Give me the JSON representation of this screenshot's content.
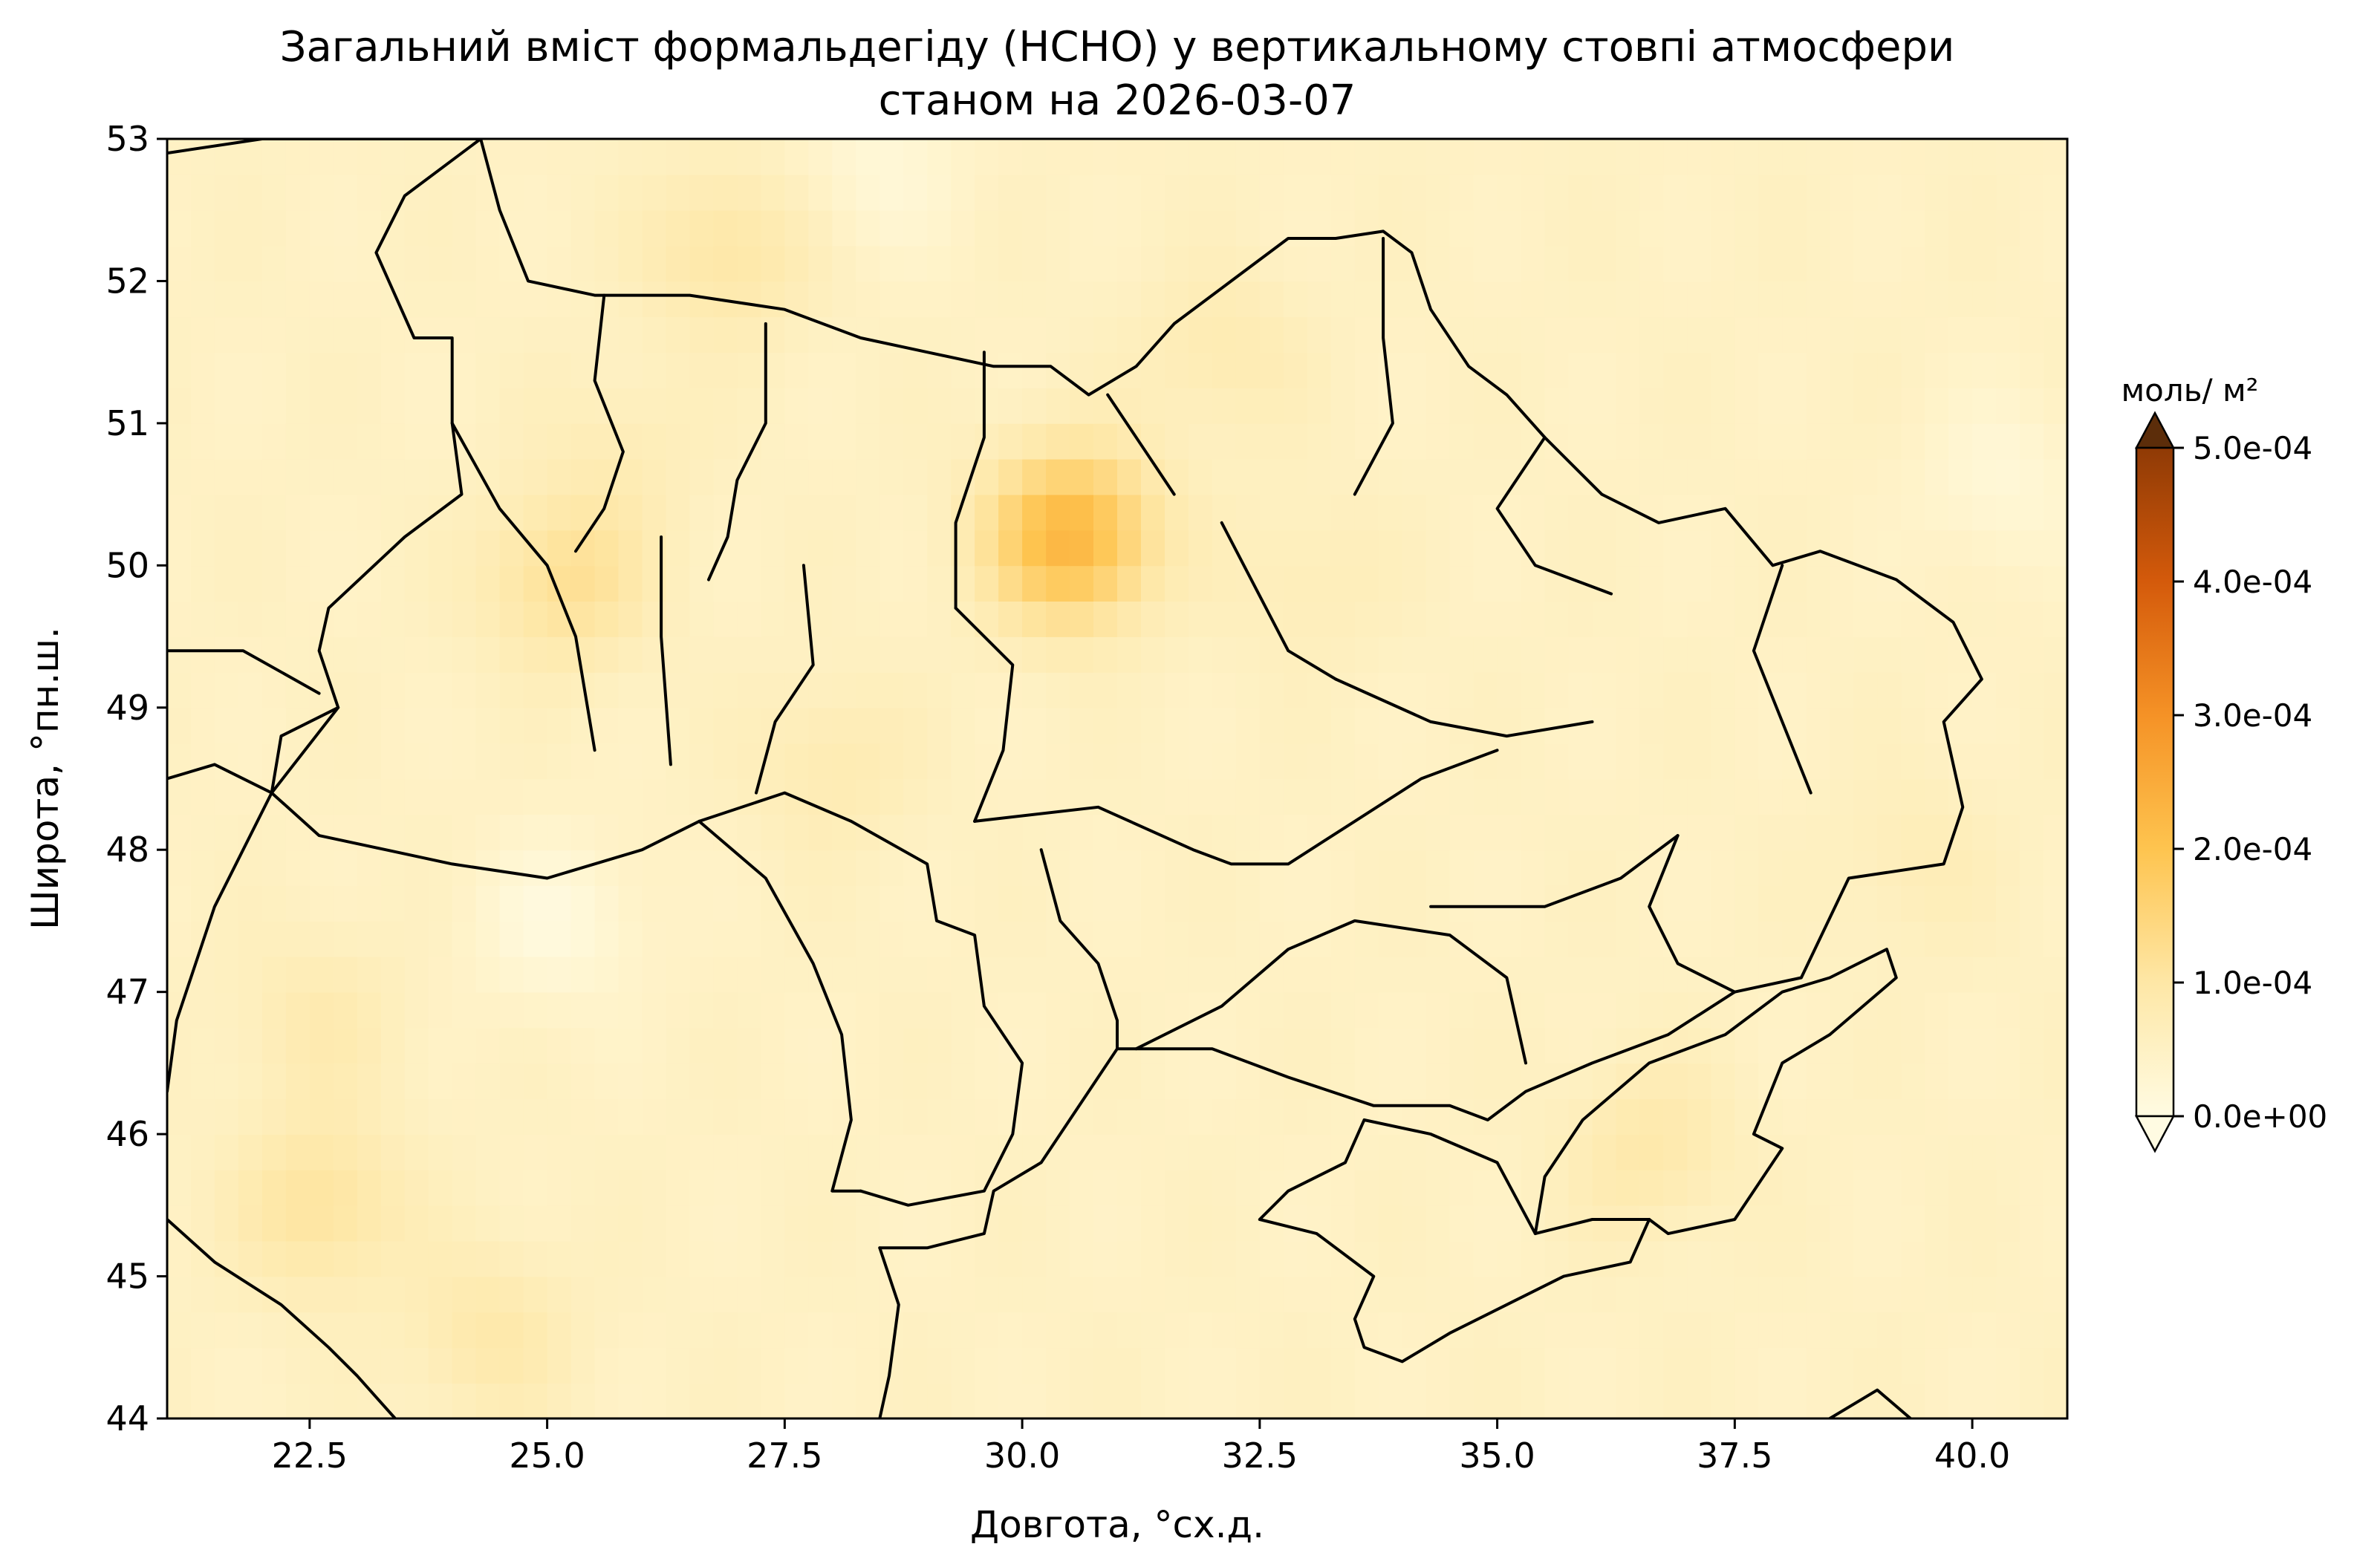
{
  "title": {
    "line1": "Загальний вміст формальдегіду (HCHO) у вертикальному стовпі атмосфери",
    "line2": "станом на 2026-03-07"
  },
  "x_axis": {
    "label": "Довгота, °сх.д.",
    "range": [
      21.0,
      41.0
    ],
    "ticks": [
      22.5,
      25.0,
      27.5,
      30.0,
      32.5,
      35.0,
      37.5,
      40.0
    ],
    "tick_labels": [
      "22.5",
      "25.0",
      "27.5",
      "30.0",
      "32.5",
      "35.0",
      "37.5",
      "40.0"
    ]
  },
  "y_axis": {
    "label": "Широта, °пн.ш.",
    "range": [
      44.0,
      53.0
    ],
    "ticks": [
      44,
      45,
      46,
      47,
      48,
      49,
      50,
      51,
      52,
      53
    ],
    "tick_labels": [
      "44",
      "45",
      "46",
      "47",
      "48",
      "49",
      "50",
      "51",
      "52",
      "53"
    ]
  },
  "colorbar": {
    "unit": "моль/ м²",
    "range": [
      0.0,
      0.0005
    ],
    "extend": "both",
    "ticks": [
      0.0,
      0.0001,
      0.0002,
      0.0003,
      0.0004,
      0.0005
    ],
    "tick_labels": [
      "0.0e+00",
      "1.0e-04",
      "2.0e-04",
      "3.0e-04",
      "4.0e-04",
      "5.0e-04"
    ],
    "colors": [
      "#fffbe2",
      "#fee7a6",
      "#fec44f",
      "#f59226",
      "#d45a0b",
      "#8f3a05",
      "#5c2d0a"
    ]
  },
  "chart_data": {
    "type": "heatmap",
    "variable": "HCHO",
    "date": "2026-03-07",
    "background_value": 5e-05,
    "hotspots": [
      {
        "lon": 30.5,
        "lat": 50.2,
        "value": 0.00023
      },
      {
        "lon": 25.2,
        "lat": 49.9,
        "value": 0.00012
      },
      {
        "lon": 26.9,
        "lat": 52.2,
        "value": 0.0001
      },
      {
        "lon": 22.6,
        "lat": 45.5,
        "value": 0.00011
      },
      {
        "lon": 32.1,
        "lat": 51.5,
        "value": 8e-05
      },
      {
        "lon": 36.6,
        "lat": 45.9,
        "value": 9e-05
      },
      {
        "lon": 24.4,
        "lat": 44.6,
        "value": 9e-05
      },
      {
        "lon": 22.6,
        "lat": 46.8,
        "value": 8e-05
      },
      {
        "lon": 28.0,
        "lat": 48.6,
        "value": 8e-05
      },
      {
        "lon": 25.8,
        "lat": 50.8,
        "value": 7e-05
      },
      {
        "lon": 33.0,
        "lat": 49.9,
        "value": 7e-05
      },
      {
        "lon": 39.4,
        "lat": 47.9,
        "value": 7e-05
      }
    ],
    "coldspots": [
      {
        "lon": 25.1,
        "lat": 47.5,
        "value": 1e-05
      },
      {
        "lon": 28.5,
        "lat": 52.8,
        "value": 2e-05
      },
      {
        "lon": 40.3,
        "lat": 50.6,
        "value": 2e-05
      }
    ]
  },
  "map": {
    "boundaries": [
      {
        "id": "north-border",
        "points": [
          [
            21.0,
            52.9
          ],
          [
            22.0,
            53.0
          ],
          [
            23.0,
            53.0
          ],
          [
            24.3,
            53.0
          ],
          [
            24.5,
            52.5
          ],
          [
            24.8,
            52.0
          ],
          [
            25.5,
            51.9
          ],
          [
            26.5,
            51.9
          ],
          [
            27.5,
            51.8
          ],
          [
            28.3,
            51.6
          ],
          [
            29.0,
            51.5
          ],
          [
            29.7,
            51.4
          ],
          [
            30.3,
            51.4
          ],
          [
            30.7,
            51.2
          ],
          [
            31.2,
            51.4
          ],
          [
            31.6,
            51.7
          ],
          [
            32.2,
            52.0
          ],
          [
            32.8,
            52.3
          ],
          [
            33.3,
            52.3
          ],
          [
            33.8,
            52.35
          ],
          [
            34.1,
            52.2
          ],
          [
            34.3,
            51.8
          ],
          [
            34.7,
            51.4
          ],
          [
            35.1,
            51.2
          ],
          [
            35.5,
            50.9
          ],
          [
            36.1,
            50.5
          ],
          [
            36.7,
            50.3
          ],
          [
            37.4,
            50.4
          ],
          [
            37.9,
            50.0
          ],
          [
            38.4,
            50.1
          ],
          [
            39.2,
            49.9
          ],
          [
            39.8,
            49.6
          ],
          [
            40.1,
            49.2
          ],
          [
            39.7,
            48.9
          ],
          [
            39.9,
            48.3
          ],
          [
            39.7,
            47.9
          ],
          [
            38.7,
            47.8
          ],
          [
            38.2,
            47.1
          ],
          [
            37.5,
            47.0
          ]
        ]
      },
      {
        "id": "south-coast",
        "points": [
          [
            37.5,
            47.0
          ],
          [
            36.8,
            46.7
          ],
          [
            36.0,
            46.5
          ],
          [
            35.3,
            46.3
          ],
          [
            34.9,
            46.1
          ],
          [
            34.5,
            46.2
          ],
          [
            33.7,
            46.2
          ],
          [
            32.8,
            46.4
          ],
          [
            32.0,
            46.6
          ],
          [
            31.5,
            46.6
          ],
          [
            31.0,
            46.6
          ],
          [
            30.8,
            46.4
          ],
          [
            30.5,
            46.1
          ],
          [
            30.2,
            45.8
          ],
          [
            29.7,
            45.6
          ],
          [
            29.6,
            45.3
          ],
          [
            29.0,
            45.2
          ],
          [
            28.5,
            45.2
          ]
        ]
      },
      {
        "id": "crimea",
        "points": [
          [
            33.6,
            46.1
          ],
          [
            34.3,
            46.0
          ],
          [
            35.0,
            45.8
          ],
          [
            35.4,
            45.3
          ],
          [
            36.0,
            45.4
          ],
          [
            36.6,
            45.4
          ],
          [
            36.4,
            45.1
          ],
          [
            35.7,
            45.0
          ],
          [
            35.1,
            44.8
          ],
          [
            34.5,
            44.6
          ],
          [
            34.0,
            44.4
          ],
          [
            33.6,
            44.5
          ],
          [
            33.5,
            44.7
          ],
          [
            33.7,
            45.0
          ],
          [
            33.1,
            45.3
          ],
          [
            32.5,
            45.4
          ],
          [
            32.8,
            45.6
          ],
          [
            33.4,
            45.8
          ],
          [
            33.6,
            46.1
          ]
        ]
      },
      {
        "id": "sea-of-azov-east",
        "points": [
          [
            35.4,
            45.3
          ],
          [
            35.5,
            45.7
          ],
          [
            35.9,
            46.1
          ],
          [
            36.6,
            46.5
          ],
          [
            37.4,
            46.7
          ],
          [
            38.0,
            47.0
          ],
          [
            38.5,
            47.1
          ],
          [
            39.1,
            47.3
          ],
          [
            39.2,
            47.1
          ],
          [
            38.5,
            46.7
          ],
          [
            38.0,
            46.5
          ],
          [
            37.7,
            46.0
          ],
          [
            38.0,
            45.9
          ],
          [
            37.5,
            45.4
          ],
          [
            36.8,
            45.3
          ],
          [
            36.6,
            45.4
          ]
        ]
      },
      {
        "id": "west-border",
        "points": [
          [
            24.3,
            53.0
          ],
          [
            23.5,
            52.6
          ],
          [
            23.2,
            52.2
          ],
          [
            23.6,
            51.6
          ],
          [
            24.0,
            51.6
          ],
          [
            24.0,
            51.0
          ],
          [
            24.1,
            50.5
          ],
          [
            23.5,
            50.2
          ],
          [
            22.7,
            49.7
          ],
          [
            22.6,
            49.4
          ],
          [
            22.8,
            49.0
          ],
          [
            22.2,
            48.8
          ],
          [
            22.1,
            48.4
          ],
          [
            22.6,
            48.1
          ],
          [
            23.3,
            48.0
          ],
          [
            24.0,
            47.9
          ],
          [
            25.0,
            47.8
          ],
          [
            26.0,
            48.0
          ],
          [
            26.6,
            48.2
          ],
          [
            27.5,
            48.4
          ],
          [
            28.2,
            48.2
          ],
          [
            29.0,
            47.9
          ],
          [
            29.1,
            47.5
          ],
          [
            29.5,
            47.4
          ],
          [
            29.6,
            46.9
          ],
          [
            30.0,
            46.5
          ],
          [
            29.9,
            46.0
          ],
          [
            29.6,
            45.6
          ],
          [
            28.8,
            45.5
          ],
          [
            28.3,
            45.6
          ]
        ]
      },
      {
        "id": "moldova-romania",
        "points": [
          [
            26.6,
            48.2
          ],
          [
            27.3,
            47.8
          ],
          [
            27.8,
            47.2
          ],
          [
            28.1,
            46.7
          ],
          [
            28.2,
            46.1
          ],
          [
            28.0,
            45.6
          ],
          [
            28.3,
            45.6
          ]
        ]
      },
      {
        "id": "romania-border",
        "points": [
          [
            22.1,
            48.4
          ],
          [
            21.5,
            47.6
          ],
          [
            21.1,
            46.8
          ],
          [
            21.0,
            46.3
          ]
        ]
      },
      {
        "id": "slovakia-border",
        "points": [
          [
            21.0,
            48.5
          ],
          [
            21.5,
            48.6
          ],
          [
            22.1,
            48.4
          ],
          [
            22.8,
            49.0
          ]
        ]
      },
      {
        "id": "poland-border",
        "points": [
          [
            21.0,
            49.4
          ],
          [
            21.8,
            49.4
          ],
          [
            22.6,
            49.1
          ]
        ]
      },
      {
        "id": "danube-border",
        "points": [
          [
            21.0,
            45.4
          ],
          [
            21.5,
            45.1
          ],
          [
            22.2,
            44.8
          ],
          [
            22.7,
            44.5
          ],
          [
            23.0,
            44.3
          ],
          [
            23.4,
            44.0
          ]
        ]
      },
      {
        "id": "black-sea-sw",
        "points": [
          [
            28.5,
            45.2
          ],
          [
            28.7,
            44.8
          ],
          [
            28.6,
            44.3
          ],
          [
            28.5,
            44.0
          ]
        ]
      },
      {
        "id": "turkey-coast",
        "points": [
          [
            38.5,
            44.0
          ],
          [
            39.0,
            44.2
          ],
          [
            39.7,
            43.8
          ]
        ]
      },
      {
        "id": "obl-volyn-rivne",
        "points": [
          [
            25.6,
            51.9
          ],
          [
            25.5,
            51.3
          ],
          [
            25.8,
            50.8
          ],
          [
            25.6,
            50.4
          ],
          [
            25.3,
            50.1
          ]
        ]
      },
      {
        "id": "obl-rivne-zhytomyr",
        "points": [
          [
            27.3,
            51.7
          ],
          [
            27.3,
            51.0
          ],
          [
            27.0,
            50.6
          ],
          [
            26.9,
            50.2
          ],
          [
            26.7,
            49.9
          ]
        ]
      },
      {
        "id": "obl-zhytomyr-kyiv",
        "points": [
          [
            29.6,
            51.5
          ],
          [
            29.6,
            50.9
          ],
          [
            29.3,
            50.3
          ],
          [
            29.3,
            49.7
          ]
        ]
      },
      {
        "id": "obl-kyiv-chernihiv",
        "points": [
          [
            30.9,
            51.2
          ],
          [
            31.3,
            50.8
          ],
          [
            31.6,
            50.5
          ]
        ]
      },
      {
        "id": "obl-chernihiv-sumy",
        "points": [
          [
            33.8,
            52.3
          ],
          [
            33.8,
            51.6
          ],
          [
            33.9,
            51.0
          ],
          [
            33.5,
            50.5
          ]
        ]
      },
      {
        "id": "obl-sumy-kharkiv",
        "points": [
          [
            35.5,
            50.9
          ],
          [
            35.0,
            50.4
          ],
          [
            35.4,
            50.0
          ],
          [
            36.2,
            49.8
          ]
        ]
      },
      {
        "id": "obl-lviv-ternopil",
        "points": [
          [
            24.0,
            51.0
          ],
          [
            24.5,
            50.4
          ],
          [
            25.0,
            50.0
          ],
          [
            25.3,
            49.5
          ],
          [
            25.5,
            48.7
          ]
        ]
      },
      {
        "id": "obl-ternopil-khmelnytskyi",
        "points": [
          [
            26.2,
            50.2
          ],
          [
            26.2,
            49.5
          ],
          [
            26.3,
            48.6
          ]
        ]
      },
      {
        "id": "obl-khmelnytskyi-vinnytsia",
        "points": [
          [
            27.7,
            50.0
          ],
          [
            27.8,
            49.3
          ],
          [
            27.4,
            48.9
          ],
          [
            27.2,
            48.4
          ]
        ]
      },
      {
        "id": "obl-vinnytsia-cherkasy",
        "points": [
          [
            29.3,
            49.7
          ],
          [
            29.9,
            49.3
          ],
          [
            29.8,
            48.7
          ],
          [
            29.5,
            48.2
          ]
        ]
      },
      {
        "id": "obl-cherkasy-poltava",
        "points": [
          [
            32.1,
            50.3
          ],
          [
            32.8,
            49.4
          ],
          [
            33.3,
            49.2
          ]
        ]
      },
      {
        "id": "obl-poltava-dnipro",
        "points": [
          [
            33.3,
            49.2
          ],
          [
            34.3,
            48.9
          ],
          [
            35.1,
            48.8
          ],
          [
            36.0,
            48.9
          ]
        ]
      },
      {
        "id": "obl-kharkiv-luhansk",
        "points": [
          [
            38.0,
            50.0
          ],
          [
            37.7,
            49.4
          ],
          [
            38.0,
            48.9
          ],
          [
            38.3,
            48.4
          ]
        ]
      },
      {
        "id": "obl-donetsk-zaporizhzhia",
        "points": [
          [
            36.9,
            48.1
          ],
          [
            36.6,
            47.6
          ],
          [
            36.9,
            47.2
          ],
          [
            37.5,
            47.0
          ]
        ]
      },
      {
        "id": "obl-kirovohrad",
        "points": [
          [
            29.5,
            48.2
          ],
          [
            30.8,
            48.3
          ],
          [
            31.8,
            48.0
          ],
          [
            32.2,
            47.9
          ],
          [
            32.8,
            47.9
          ],
          [
            33.5,
            48.2
          ],
          [
            34.2,
            48.5
          ],
          [
            35.0,
            48.7
          ]
        ]
      },
      {
        "id": "obl-mykolaiv-kherson",
        "points": [
          [
            31.2,
            46.6
          ],
          [
            32.1,
            46.9
          ],
          [
            32.8,
            47.3
          ],
          [
            33.5,
            47.5
          ],
          [
            34.5,
            47.4
          ],
          [
            35.1,
            47.1
          ],
          [
            35.3,
            46.5
          ]
        ]
      },
      {
        "id": "obl-odesa-mykolaiv",
        "points": [
          [
            30.2,
            48.0
          ],
          [
            30.4,
            47.5
          ],
          [
            30.8,
            47.2
          ],
          [
            31.0,
            46.8
          ],
          [
            31.0,
            46.6
          ]
        ]
      },
      {
        "id": "obl-dnipro-zaporizhzhia",
        "points": [
          [
            34.3,
            47.6
          ],
          [
            35.5,
            47.6
          ],
          [
            36.3,
            47.8
          ],
          [
            36.9,
            48.1
          ]
        ]
      }
    ]
  }
}
